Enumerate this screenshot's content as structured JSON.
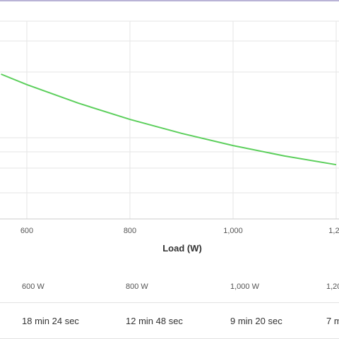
{
  "colors": {
    "line": "#5ccf5c",
    "grid": "#e6e6e6",
    "accent_top_rule": "#b9b3d6"
  },
  "chart_data": {
    "type": "line",
    "xlabel": "Load (W)",
    "ylabel": "",
    "x_ticks": [
      "600",
      "800",
      "1,000",
      "1,20"
    ],
    "series": [
      {
        "x": [
          550,
          600,
          700,
          800,
          900,
          1000,
          1100,
          1200
        ],
        "values": [
          23.7,
          21.9,
          18.7,
          15.9,
          13.5,
          11.4,
          9.6,
          8.1
        ]
      }
    ],
    "grid": true
  },
  "runtime_table": {
    "loads": [
      "600 W",
      "800 W",
      "1,000 W",
      "1,20"
    ],
    "runtimes": [
      "18 min 24 sec",
      "12 min 48 sec",
      "9 min 20 sec",
      "7 m"
    ]
  }
}
